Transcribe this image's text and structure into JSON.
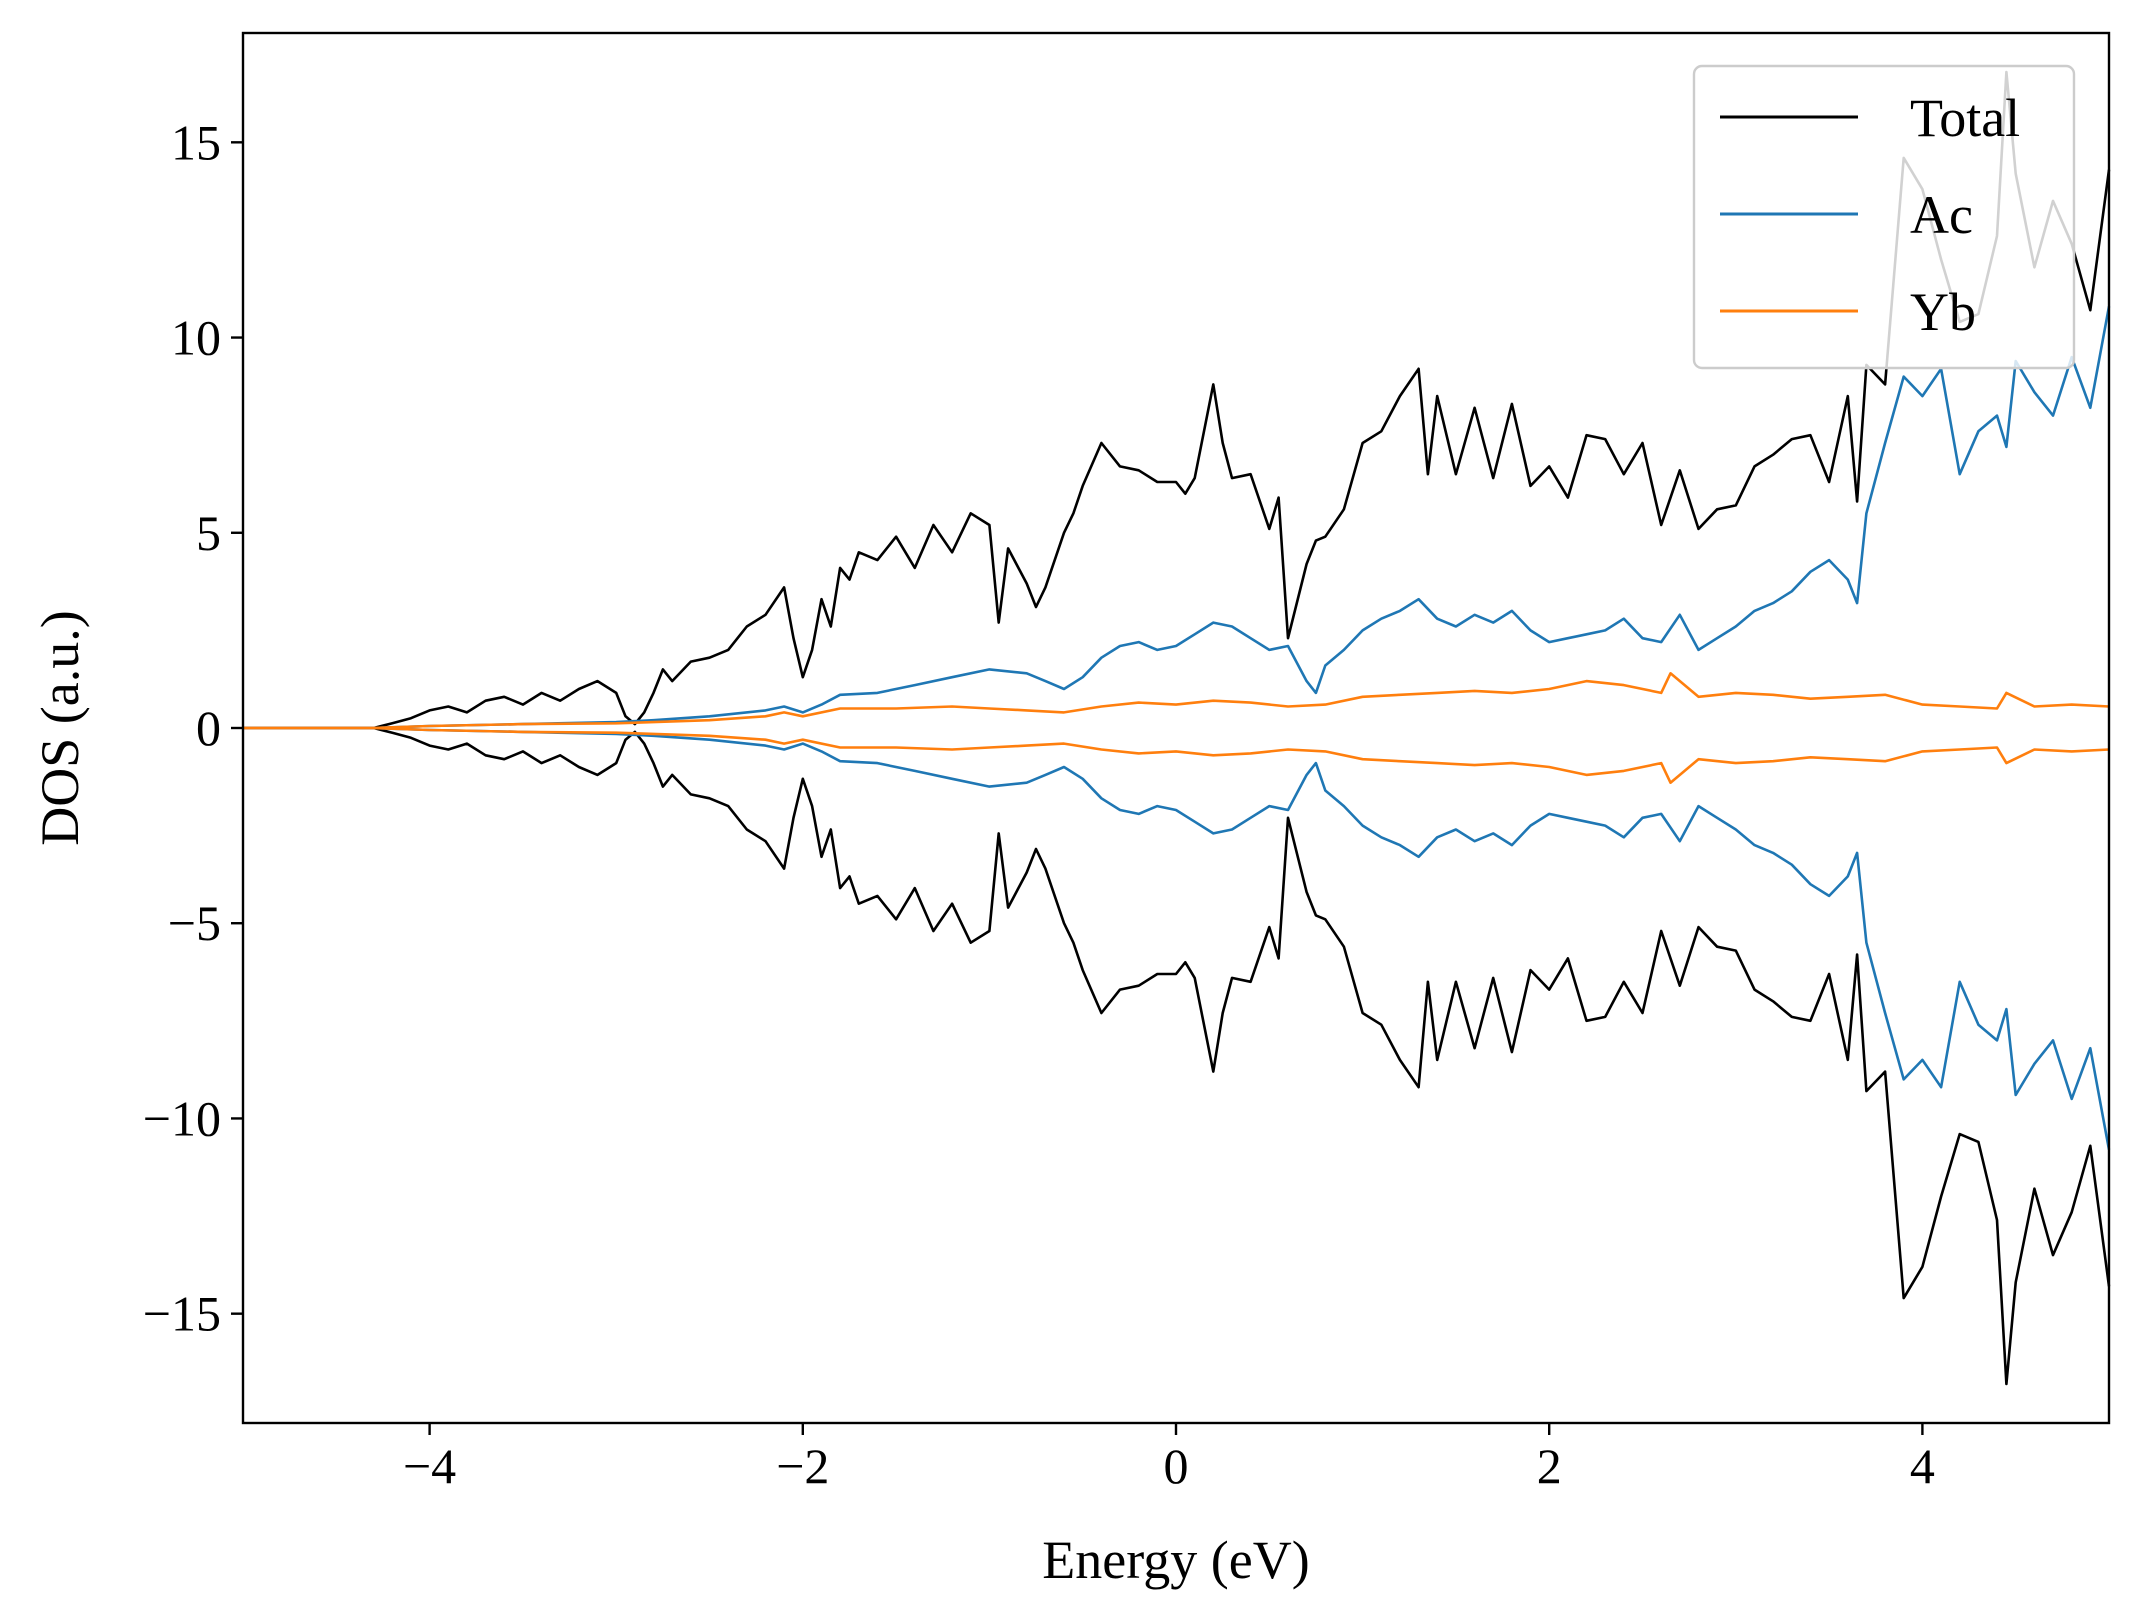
{
  "chart_data": {
    "type": "line",
    "title": "",
    "xlabel": "Energy (eV)",
    "ylabel": "DOS (a.u.)",
    "xlim": [
      -5,
      5
    ],
    "ylim": [
      -17.8,
      17.8
    ],
    "xticks": [
      -4,
      -2,
      0,
      2,
      4
    ],
    "xtick_labels": [
      "−4",
      "−2",
      "0",
      "2",
      "4"
    ],
    "yticks": [
      15,
      10,
      5,
      0,
      -5,
      -10,
      -15
    ],
    "ytick_labels": [
      "15",
      "10",
      "5",
      "0",
      "−5",
      "−10",
      "−15"
    ],
    "grid": false,
    "legend_position": "top-right",
    "mirrored_spin_channels": true,
    "series": [
      {
        "name": "Total",
        "color": "#000000",
        "x": [
          -5.0,
          -4.3,
          -4.2,
          -4.1,
          -4.0,
          -3.9,
          -3.8,
          -3.7,
          -3.6,
          -3.5,
          -3.4,
          -3.3,
          -3.2,
          -3.1,
          -3.0,
          -2.95,
          -2.9,
          -2.85,
          -2.8,
          -2.75,
          -2.7,
          -2.6,
          -2.5,
          -2.4,
          -2.3,
          -2.2,
          -2.1,
          -2.05,
          -2.0,
          -1.95,
          -1.9,
          -1.85,
          -1.8,
          -1.75,
          -1.7,
          -1.6,
          -1.5,
          -1.4,
          -1.3,
          -1.2,
          -1.1,
          -1.0,
          -0.95,
          -0.9,
          -0.8,
          -0.75,
          -0.7,
          -0.6,
          -0.55,
          -0.5,
          -0.4,
          -0.3,
          -0.2,
          -0.1,
          0.0,
          0.05,
          0.1,
          0.2,
          0.25,
          0.3,
          0.4,
          0.5,
          0.55,
          0.6,
          0.7,
          0.75,
          0.8,
          0.9,
          1.0,
          1.1,
          1.2,
          1.3,
          1.35,
          1.4,
          1.5,
          1.6,
          1.7,
          1.8,
          1.9,
          2.0,
          2.1,
          2.2,
          2.3,
          2.4,
          2.5,
          2.6,
          2.7,
          2.8,
          2.9,
          3.0,
          3.1,
          3.2,
          3.3,
          3.4,
          3.5,
          3.6,
          3.65,
          3.7,
          3.8,
          3.9,
          4.0,
          4.1,
          4.2,
          4.3,
          4.4,
          4.45,
          4.5,
          4.6,
          4.7,
          4.8,
          4.9,
          5.0
        ],
        "y": [
          0.0,
          0.0,
          0.12,
          0.25,
          0.45,
          0.55,
          0.4,
          0.7,
          0.8,
          0.6,
          0.9,
          0.7,
          1.0,
          1.2,
          0.9,
          0.3,
          0.1,
          0.4,
          0.9,
          1.5,
          1.2,
          1.7,
          1.8,
          2.0,
          2.6,
          2.9,
          3.6,
          2.3,
          1.3,
          2.0,
          3.3,
          2.6,
          4.1,
          3.8,
          4.5,
          4.3,
          4.9,
          4.1,
          5.2,
          4.5,
          5.5,
          5.2,
          2.7,
          4.6,
          3.7,
          3.1,
          3.6,
          5.0,
          5.5,
          6.2,
          7.3,
          6.7,
          6.6,
          6.3,
          6.3,
          6.0,
          6.4,
          8.8,
          7.3,
          6.4,
          6.5,
          5.1,
          5.9,
          2.3,
          4.2,
          4.8,
          4.9,
          5.6,
          7.3,
          7.6,
          8.5,
          9.2,
          6.5,
          8.5,
          6.5,
          8.2,
          6.4,
          8.3,
          6.2,
          6.7,
          5.9,
          7.5,
          7.4,
          6.5,
          7.3,
          5.2,
          6.6,
          5.1,
          5.6,
          5.7,
          6.7,
          7.0,
          7.4,
          7.5,
          6.3,
          8.5,
          5.8,
          9.3,
          8.8,
          14.6,
          13.8,
          12.0,
          10.4,
          10.6,
          12.6,
          16.8,
          14.2,
          11.8,
          13.5,
          12.4,
          10.7,
          14.3
        ]
      },
      {
        "name": "Ac",
        "color": "#1f77b4",
        "x": [
          -5.0,
          -4.3,
          -4.0,
          -3.5,
          -3.0,
          -2.8,
          -2.5,
          -2.2,
          -2.1,
          -2.0,
          -1.9,
          -1.8,
          -1.6,
          -1.4,
          -1.2,
          -1.0,
          -0.8,
          -0.7,
          -0.6,
          -0.5,
          -0.4,
          -0.3,
          -0.2,
          -0.1,
          0.0,
          0.1,
          0.2,
          0.3,
          0.4,
          0.5,
          0.6,
          0.7,
          0.75,
          0.8,
          0.9,
          1.0,
          1.1,
          1.2,
          1.3,
          1.4,
          1.5,
          1.6,
          1.7,
          1.8,
          1.9,
          2.0,
          2.1,
          2.2,
          2.3,
          2.4,
          2.5,
          2.6,
          2.7,
          2.8,
          2.9,
          3.0,
          3.1,
          3.2,
          3.3,
          3.4,
          3.5,
          3.6,
          3.65,
          3.7,
          3.8,
          3.9,
          4.0,
          4.1,
          4.2,
          4.3,
          4.4,
          4.45,
          4.5,
          4.6,
          4.7,
          4.8,
          4.9,
          5.0
        ],
        "y": [
          0.0,
          0.0,
          0.05,
          0.1,
          0.15,
          0.2,
          0.3,
          0.45,
          0.55,
          0.4,
          0.6,
          0.85,
          0.9,
          1.1,
          1.3,
          1.5,
          1.4,
          1.2,
          1.0,
          1.3,
          1.8,
          2.1,
          2.2,
          2.0,
          2.1,
          2.4,
          2.7,
          2.6,
          2.3,
          2.0,
          2.1,
          1.2,
          0.9,
          1.6,
          2.0,
          2.5,
          2.8,
          3.0,
          3.3,
          2.8,
          2.6,
          2.9,
          2.7,
          3.0,
          2.5,
          2.2,
          2.3,
          2.4,
          2.5,
          2.8,
          2.3,
          2.2,
          2.9,
          2.0,
          2.3,
          2.6,
          3.0,
          3.2,
          3.5,
          4.0,
          4.3,
          3.8,
          3.2,
          5.5,
          7.3,
          9.0,
          8.5,
          9.2,
          6.5,
          7.6,
          8.0,
          7.2,
          9.4,
          8.6,
          8.0,
          9.5,
          8.2,
          10.8
        ]
      },
      {
        "name": "Yb",
        "color": "#ff7f0e",
        "x": [
          -5.0,
          -4.3,
          -4.0,
          -3.5,
          -3.0,
          -2.5,
          -2.2,
          -2.1,
          -2.0,
          -1.8,
          -1.5,
          -1.2,
          -1.0,
          -0.8,
          -0.6,
          -0.4,
          -0.2,
          0.0,
          0.2,
          0.4,
          0.6,
          0.8,
          1.0,
          1.2,
          1.4,
          1.6,
          1.8,
          2.0,
          2.2,
          2.4,
          2.6,
          2.65,
          2.8,
          3.0,
          3.2,
          3.4,
          3.6,
          3.8,
          4.0,
          4.2,
          4.4,
          4.45,
          4.6,
          4.8,
          5.0
        ],
        "y": [
          0.0,
          0.0,
          0.05,
          0.1,
          0.12,
          0.2,
          0.3,
          0.4,
          0.3,
          0.5,
          0.5,
          0.55,
          0.5,
          0.45,
          0.4,
          0.55,
          0.65,
          0.6,
          0.7,
          0.65,
          0.55,
          0.6,
          0.8,
          0.85,
          0.9,
          0.95,
          0.9,
          1.0,
          1.2,
          1.1,
          0.9,
          1.4,
          0.8,
          0.9,
          0.85,
          0.75,
          0.8,
          0.85,
          0.6,
          0.55,
          0.5,
          0.9,
          0.55,
          0.6,
          0.55
        ]
      }
    ]
  }
}
